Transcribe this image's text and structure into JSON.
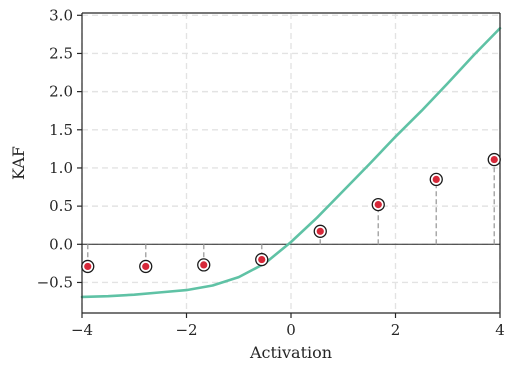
{
  "chart_data": {
    "type": "line",
    "xlabel": "Activation",
    "ylabel": "KAF",
    "xlim": [
      -4,
      4
    ],
    "ylim": [
      -0.9,
      3.03
    ],
    "xticks": [
      -4,
      -2,
      0,
      2,
      4
    ],
    "xtick_labels": [
      "−4",
      "−2",
      "0",
      "2",
      "4"
    ],
    "yticks": [
      -0.5,
      0.0,
      0.5,
      1.0,
      1.5,
      2.0,
      2.5,
      3.0
    ],
    "ytick_labels": [
      "−0.5",
      "0.0",
      "0.5",
      "1.0",
      "1.5",
      "2.0",
      "2.5",
      "3.0"
    ],
    "grid": true,
    "baseline_y": 0,
    "series": [
      {
        "kind": "line",
        "color": "#5fc2a5",
        "x": [
          -4.0,
          -3.5,
          -3.0,
          -2.5,
          -2.0,
          -1.5,
          -1.0,
          -0.5,
          0.0,
          0.5,
          1.0,
          1.5,
          2.0,
          2.5,
          3.0,
          3.5,
          4.0
        ],
        "y": [
          -0.69,
          -0.68,
          -0.66,
          -0.63,
          -0.6,
          -0.54,
          -0.43,
          -0.25,
          0.03,
          0.35,
          0.7,
          1.05,
          1.41,
          1.75,
          2.11,
          2.48,
          2.83
        ]
      },
      {
        "kind": "stem",
        "marker_color": "#d62839",
        "marker_edge_color": "#1a1a1a",
        "stem_color": "#a9a9a9",
        "x": [
          -3.89,
          -2.78,
          -1.67,
          -0.56,
          0.56,
          1.67,
          2.78,
          3.89
        ],
        "y": [
          -0.29,
          -0.29,
          -0.27,
          -0.2,
          0.17,
          0.52,
          0.85,
          1.11
        ]
      }
    ]
  }
}
